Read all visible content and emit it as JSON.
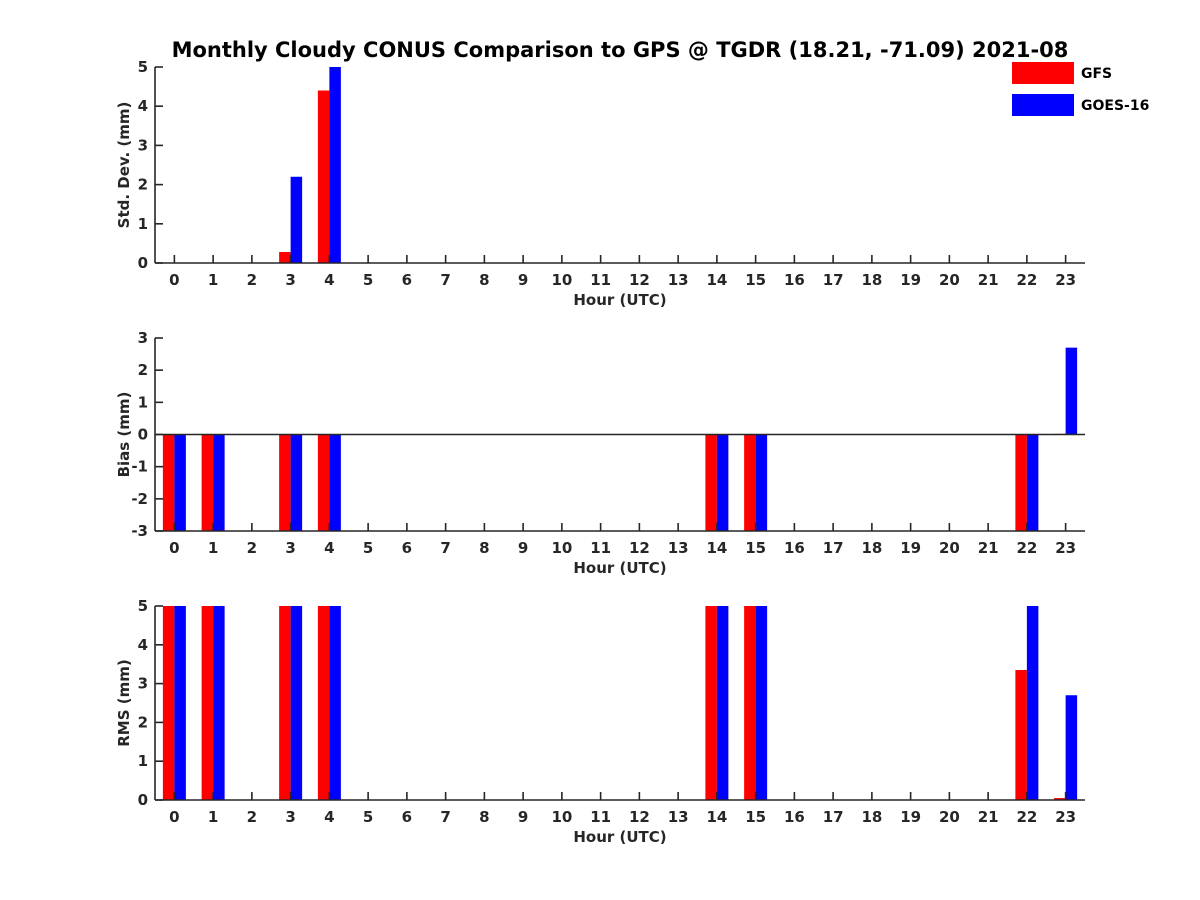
{
  "chart_data": {
    "type": "bar",
    "title": "Monthly Cloudy CONUS Comparison to GPS @ TGDR (18.21, -71.09) 2021-08",
    "legend": {
      "placement": "top-right",
      "entries": [
        {
          "name": "GFS",
          "color": "#ff0000"
        },
        {
          "name": "GOES-16",
          "color": "#0000ff"
        }
      ]
    },
    "grid": false,
    "categories": [
      "0",
      "1",
      "2",
      "3",
      "4",
      "5",
      "6",
      "7",
      "8",
      "9",
      "10",
      "11",
      "12",
      "13",
      "14",
      "15",
      "16",
      "17",
      "18",
      "19",
      "20",
      "21",
      "22",
      "23"
    ],
    "panels": [
      {
        "ylabel": "Std. Dev. (mm)",
        "xlabel": "Hour (UTC)",
        "ylim": [
          0,
          5
        ],
        "yticks": [
          "0",
          "1",
          "2",
          "3",
          "4",
          "5"
        ],
        "series": [
          {
            "name": "GFS",
            "color": "#ff0000",
            "values": [
              0,
              0,
              0,
              0.28,
              4.4,
              0,
              0,
              0,
              0,
              0,
              0,
              0,
              0,
              0,
              0,
              0,
              0,
              0,
              0,
              0,
              0,
              0,
              0,
              0
            ]
          },
          {
            "name": "GOES-16",
            "color": "#0000ff",
            "values": [
              0,
              0,
              0,
              2.2,
              5,
              0,
              0,
              0,
              0,
              0,
              0,
              0,
              0,
              0,
              0,
              0,
              0,
              0,
              0,
              0,
              0,
              0,
              0,
              0
            ]
          }
        ]
      },
      {
        "ylabel": "Bias (mm)",
        "xlabel": "Hour (UTC)",
        "ylim": [
          -3,
          3
        ],
        "yticks": [
          "-3",
          "-2",
          "-1",
          "0",
          "1",
          "2",
          "3"
        ],
        "zeroline": true,
        "series": [
          {
            "name": "GFS",
            "color": "#ff0000",
            "values": [
              -3,
              -3,
              0,
              -3,
              -3,
              0,
              0,
              0,
              0,
              0,
              0,
              0,
              0,
              0,
              -3,
              -3,
              0,
              0,
              0,
              0,
              0,
              0,
              -3,
              0.02
            ]
          },
          {
            "name": "GOES-16",
            "color": "#0000ff",
            "values": [
              -3,
              -3,
              0,
              -3,
              -3,
              0,
              0,
              0,
              0,
              0,
              0,
              0,
              0,
              0,
              -3,
              -3,
              0,
              0,
              0,
              0,
              0,
              0,
              -3,
              2.7
            ]
          }
        ]
      },
      {
        "ylabel": "RMS (mm)",
        "xlabel": "Hour (UTC)",
        "ylim": [
          0,
          5
        ],
        "yticks": [
          "0",
          "1",
          "2",
          "3",
          "4",
          "5"
        ],
        "series": [
          {
            "name": "GFS",
            "color": "#ff0000",
            "values": [
              5,
              5,
              0,
              5,
              5,
              0,
              0,
              0,
              0,
              0,
              0,
              0,
              0,
              0,
              5,
              5,
              0,
              0,
              0,
              0,
              0,
              0,
              3.35,
              0.05
            ]
          },
          {
            "name": "GOES-16",
            "color": "#0000ff",
            "values": [
              5,
              5,
              0,
              5,
              5,
              0,
              0,
              0,
              0,
              0,
              0,
              0,
              0,
              0,
              5,
              5,
              0,
              0,
              0,
              0,
              0,
              0,
              5,
              2.7
            ]
          }
        ]
      }
    ]
  }
}
